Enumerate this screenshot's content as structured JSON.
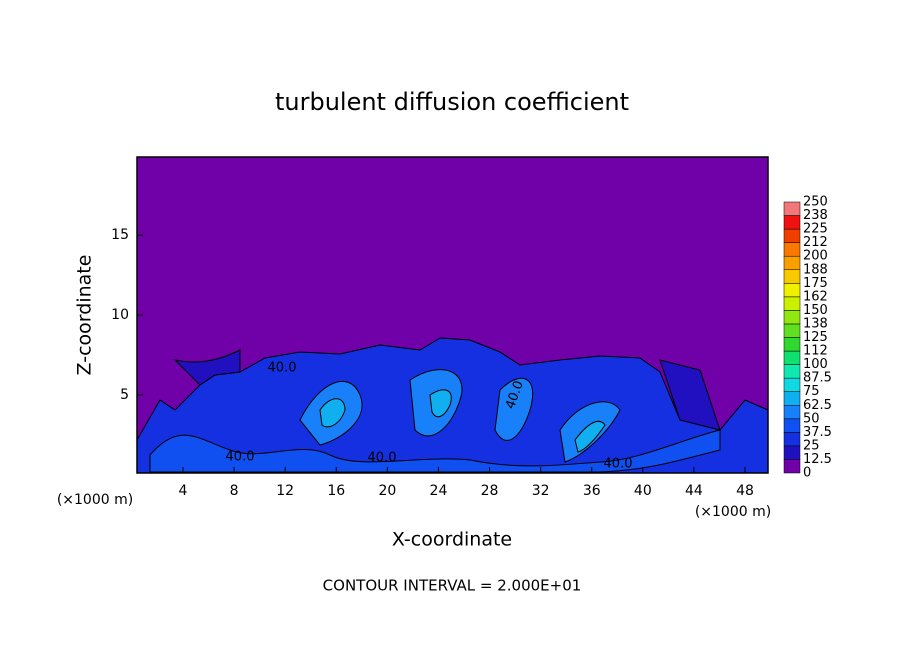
{
  "chart_data": {
    "type": "contour",
    "title": "turbulent diffusion coefficient",
    "x_label": "X-coordinate",
    "y_label": "Z-coordinate",
    "x_unit": "(×1000 m)",
    "note": "CONTOUR INTERVAL = 2.000E+01",
    "xlim": [
      0.4,
      49.8
    ],
    "xticks": [
      4,
      8,
      12,
      16,
      20,
      24,
      28,
      32,
      36,
      40,
      44,
      48
    ],
    "ylim": [
      0.1,
      19.9
    ],
    "yticks": [
      5,
      10,
      15
    ],
    "contour_labels": [
      "40.0",
      "40.0",
      "40.0",
      "40.0",
      "40.0"
    ],
    "colorbar": {
      "levels": [
        0,
        12.5,
        25,
        37.5,
        50,
        62.5,
        75,
        87.5,
        100,
        112,
        125,
        138,
        150,
        162,
        175,
        188,
        200,
        212,
        225,
        238,
        250
      ],
      "colors": [
        "#7000a8",
        "#2010c0",
        "#1430e0",
        "#1050f0",
        "#1880f8",
        "#10b0f0",
        "#10d8e0",
        "#10e8b0",
        "#10e070",
        "#30d830",
        "#60e020",
        "#90e810",
        "#c8f000",
        "#f0f000",
        "#f8c800",
        "#f8a000",
        "#f87800",
        "#f04000",
        "#f01010",
        "#f07878"
      ]
    }
  }
}
